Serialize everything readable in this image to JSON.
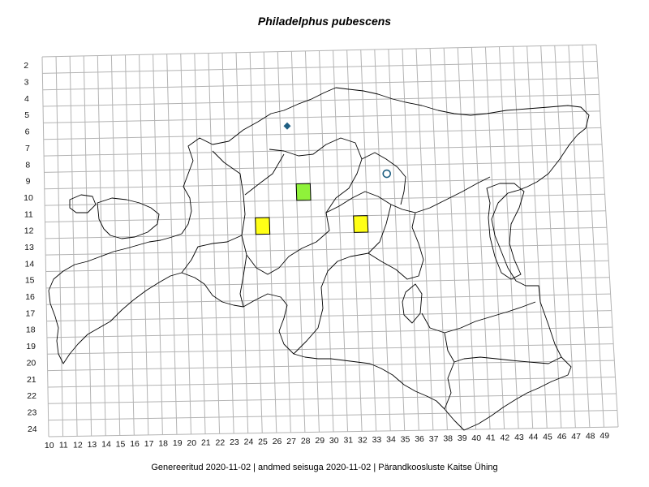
{
  "title": "Philadelphus pubescens",
  "footer": "Genereeritud 2020-11-02  |  andmed seisuga 2020-11-02  |  Pärandkoosluste Kaitse Ühing",
  "grid": {
    "rows": [
      "2",
      "3",
      "4",
      "5",
      "6",
      "7",
      "8",
      "9",
      "10",
      "11",
      "12",
      "13",
      "14",
      "15",
      "16",
      "17",
      "18",
      "19",
      "20",
      "21",
      "22",
      "23",
      "24"
    ],
    "cols": [
      "10",
      "11",
      "12",
      "13",
      "14",
      "15",
      "16",
      "17",
      "18",
      "19",
      "20",
      "21",
      "22",
      "23",
      "24",
      "25",
      "26",
      "27",
      "28",
      "29",
      "30",
      "31",
      "32",
      "33",
      "34",
      "35",
      "36",
      "37",
      "38",
      "39",
      "40",
      "41",
      "42",
      "43",
      "44",
      "45",
      "46",
      "47",
      "48",
      "49"
    ]
  },
  "records": [
    {
      "type": "square",
      "col": 28,
      "row": 10,
      "color": "#8ff23a"
    },
    {
      "type": "square",
      "col": 25,
      "row": 12,
      "color": "#ffff16"
    },
    {
      "type": "square",
      "col": 32,
      "row": 12,
      "color": "#ffff16"
    },
    {
      "type": "diamond",
      "col": 27,
      "row": 6,
      "color": "#1f5f82"
    },
    {
      "type": "circle",
      "col": 34,
      "row": 9,
      "color": "#1f5f82"
    }
  ],
  "colors": {
    "grid": "#b3b3b3",
    "outline": "#000000"
  }
}
